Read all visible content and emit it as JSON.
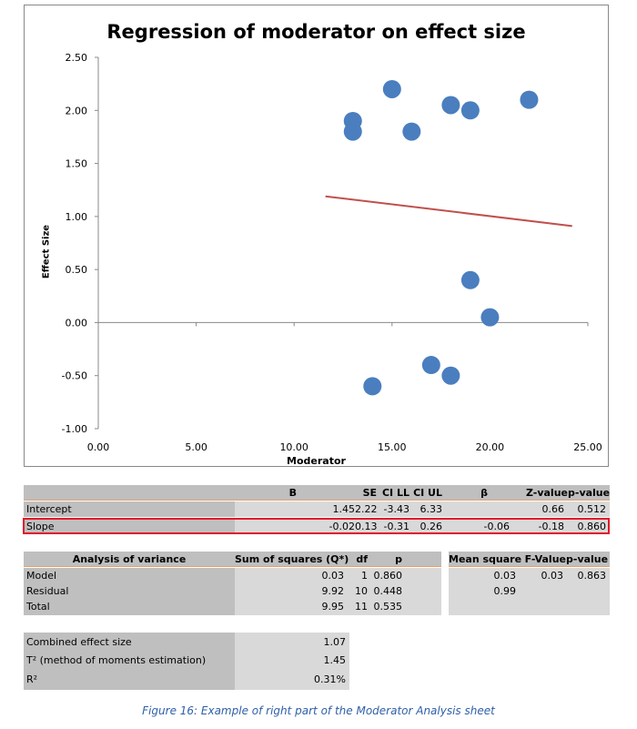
{
  "chart_data": {
    "type": "scatter",
    "title": "Regression of moderator on effect size",
    "xlabel": "Moderator",
    "ylabel": "Effect Size",
    "xlim": [
      0,
      25
    ],
    "ylim": [
      -1,
      2.5
    ],
    "x_ticks": [
      "0.00",
      "5.00",
      "10.00",
      "15.00",
      "20.00",
      "25.00"
    ],
    "y_ticks": [
      "2.50",
      "2.00",
      "1.50",
      "1.00",
      "0.50",
      "0.00",
      "-0.50",
      "-1.00"
    ],
    "points": [
      {
        "x": 13,
        "y": 1.9
      },
      {
        "x": 13,
        "y": 1.8
      },
      {
        "x": 15,
        "y": 2.2
      },
      {
        "x": 16,
        "y": 1.8
      },
      {
        "x": 18,
        "y": 2.05
      },
      {
        "x": 19,
        "y": 2.0
      },
      {
        "x": 22,
        "y": 2.1
      },
      {
        "x": 19,
        "y": 0.4
      },
      {
        "x": 20,
        "y": 0.05
      },
      {
        "x": 17,
        "y": -0.4
      },
      {
        "x": 18,
        "y": -0.5
      },
      {
        "x": 14,
        "y": -0.6
      }
    ],
    "regression_line": {
      "x1": 11.6,
      "y1": 1.19,
      "x2": 24.2,
      "y2": 0.91
    },
    "colors": {
      "points": "#4a7ebf",
      "line": "#c0504d",
      "grid": "#000000"
    }
  },
  "reg_table": {
    "headers": [
      "B",
      "SE",
      "CI LL",
      "CI UL",
      "β",
      "Z-value",
      "p-value"
    ],
    "rows": [
      {
        "label": "Intercept",
        "B": "1.45",
        "SE": "2.22",
        "CILL": "-3.43",
        "CIUL": "6.33",
        "beta": "",
        "Z": "0.66",
        "p": "0.512"
      },
      {
        "label": "Slope",
        "B": "-0.02",
        "SE": "0.13",
        "CILL": "-0.31",
        "CIUL": "0.26",
        "beta": "-0.06",
        "Z": "-0.18",
        "p": "0.860"
      }
    ]
  },
  "anova": {
    "headers": {
      "label": "Analysis of variance",
      "ss": "Sum of squares (Q*)",
      "df": "df",
      "p": "p",
      "ms": "Mean square",
      "f": "F-Value",
      "fp": "p-value"
    },
    "rows": [
      {
        "label": "Model",
        "ss": "0.03",
        "df": "1",
        "p": "0.860",
        "ms": "0.03",
        "f": "0.03",
        "fp": "0.863"
      },
      {
        "label": "Residual",
        "ss": "9.92",
        "df": "10",
        "p": "0.448",
        "ms": "0.99",
        "f": "",
        "fp": ""
      },
      {
        "label": "Total",
        "ss": "9.95",
        "df": "11",
        "p": "0.535",
        "ms": "",
        "f": "",
        "fp": ""
      }
    ]
  },
  "summary": [
    {
      "label": "Combined effect size",
      "value": "1.07"
    },
    {
      "label": "T² (method of moments estimation)",
      "value": "1.45"
    },
    {
      "label": "R²",
      "value": "0.31%"
    }
  ],
  "caption": "Figure 16: Example of right part of the Moderator Analysis sheet"
}
